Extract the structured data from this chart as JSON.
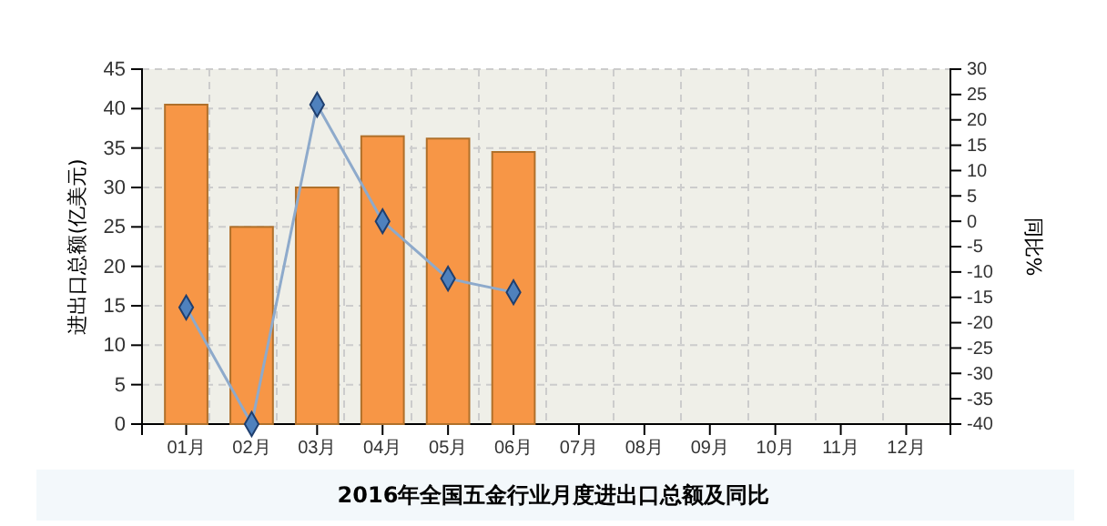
{
  "chart_data": {
    "type": "bar",
    "title": "2016年全国五金行业月度进出口总额及同比",
    "ylabel": "进出口总额(亿美元)",
    "y2label": "同比%",
    "categories": [
      "01月",
      "02月",
      "03月",
      "04月",
      "05月",
      "06月",
      "07月",
      "08月",
      "09月",
      "10月",
      "11月",
      "12月"
    ],
    "series": [
      {
        "color": "#f79646",
        "values": [
          40.5,
          25,
          30,
          36.5,
          36.2,
          34.5,
          null,
          null,
          null,
          null,
          null,
          null
        ]
      },
      {
        "type": "line",
        "axis": "y2",
        "color": "#8eaacb",
        "marker": "diamond",
        "values": [
          -17,
          -40,
          23,
          0,
          -11.3,
          -14,
          null,
          null,
          null,
          null,
          null,
          null
        ]
      }
    ],
    "ylim": [
      0,
      45
    ],
    "yticks": [
      0,
      5,
      10,
      15,
      20,
      25,
      30,
      35,
      40,
      45
    ],
    "y2lim": [
      -40,
      30
    ],
    "y2ticks": [
      -40,
      -35,
      -30,
      -25,
      -20,
      -15,
      -10,
      -5,
      0,
      5,
      10,
      15,
      20,
      25,
      30
    ],
    "grid": true
  }
}
